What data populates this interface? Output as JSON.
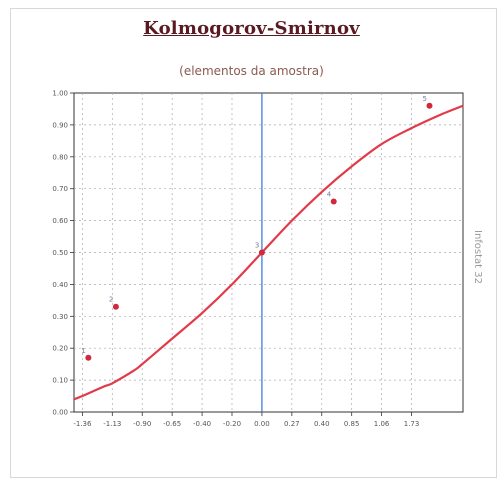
{
  "header": {
    "title": "Kolmogorov-Smirnov",
    "subtitle": "(elementos da amostra)"
  },
  "side_label": "Infostat 32",
  "chart_data": {
    "type": "scatter",
    "title": "Kolmogorov-Smirnov",
    "subtitle": "(elementos da amostra)",
    "xlim": [
      -1.45,
      1.8
    ],
    "ylim": [
      0.0,
      1.0
    ],
    "x_ticks": [
      -1.38,
      -1.13,
      -0.88,
      -0.63,
      -0.38,
      -0.13,
      0.12,
      0.37,
      0.62,
      0.87,
      1.12,
      1.37
    ],
    "x_tick_labels": [
      "-1.36",
      "-1.13",
      "-0.90",
      "-0.65",
      "-0.40",
      "-0.20",
      "0.00",
      "0.27",
      "0.40",
      "0.85",
      "1.06",
      "1.73"
    ],
    "y_ticks": [
      0.0,
      0.1,
      0.2,
      0.3,
      0.4,
      0.5,
      0.6,
      0.7,
      0.8,
      0.9,
      1.0
    ],
    "y_tick_labels": [
      "0.00",
      "0.10",
      "0.20",
      "0.30",
      "0.40",
      "0.50",
      "0.60",
      "0.70",
      "0.80",
      "0.90",
      "1.00"
    ],
    "grid": true,
    "vertical_line_x": 0.12,
    "colors": {
      "curve": "#e23a4a",
      "points": "#d0283c",
      "vertical_line": "#3f7fd8",
      "grid": "#aaaaaa"
    },
    "series": [
      {
        "kind": "curve",
        "points": [
          [
            -1.45,
            0.04
          ],
          [
            -1.38,
            0.05
          ],
          [
            -1.2,
            0.08
          ],
          [
            -1.13,
            0.09
          ],
          [
            -0.95,
            0.13
          ],
          [
            -0.88,
            0.15
          ],
          [
            -0.63,
            0.23
          ],
          [
            -0.38,
            0.31
          ],
          [
            -0.13,
            0.4
          ],
          [
            0.12,
            0.5
          ],
          [
            0.37,
            0.6
          ],
          [
            0.62,
            0.69
          ],
          [
            0.87,
            0.77
          ],
          [
            1.12,
            0.84
          ],
          [
            1.37,
            0.89
          ],
          [
            1.6,
            0.93
          ],
          [
            1.8,
            0.96
          ]
        ]
      },
      {
        "kind": "empirical_points",
        "points": [
          {
            "x": -1.33,
            "y": 0.17,
            "label": "1"
          },
          {
            "x": -1.1,
            "y": 0.33,
            "label": "2"
          },
          {
            "x": 0.12,
            "y": 0.5,
            "label": "3"
          },
          {
            "x": 0.72,
            "y": 0.66,
            "label": "4"
          },
          {
            "x": 1.52,
            "y": 0.96,
            "label": "5"
          }
        ]
      }
    ]
  }
}
